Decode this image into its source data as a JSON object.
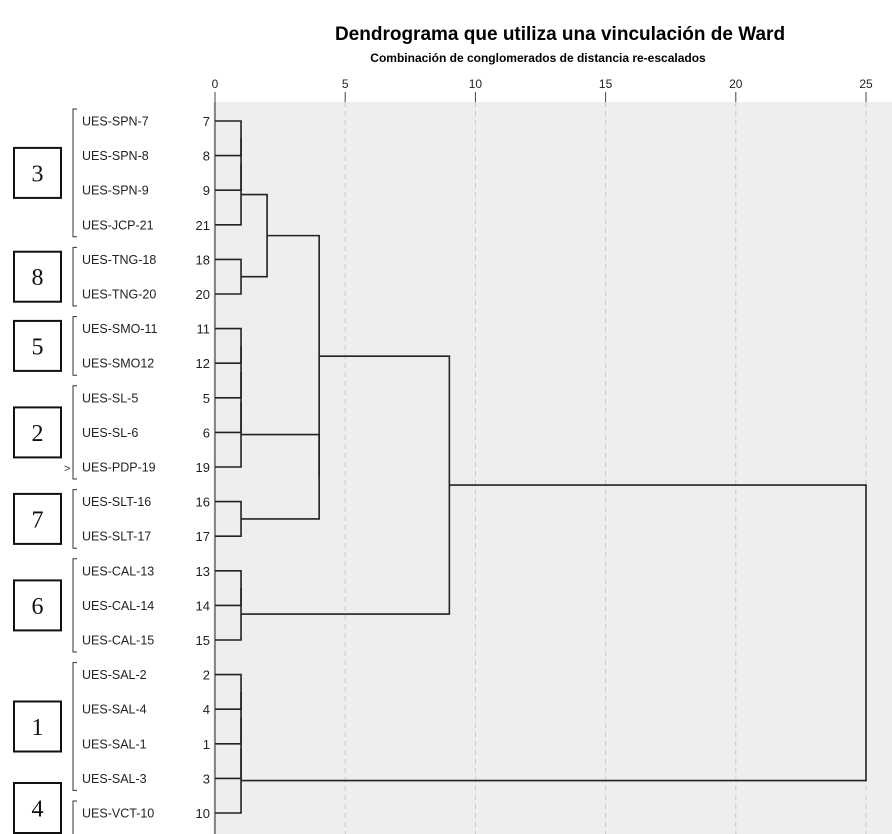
{
  "chart_data": {
    "type": "dendrogram",
    "title": "Dendrograma que utiliza una vinculación de Ward",
    "subtitle": "Combinación de conglomerados de distancia re-escalados",
    "xlim": [
      0,
      25
    ],
    "x_ticks": [
      0,
      5,
      10,
      15,
      20,
      25
    ],
    "leaves": [
      {
        "label": "UES-SPN-7",
        "id": "7"
      },
      {
        "label": "UES-SPN-8",
        "id": "8"
      },
      {
        "label": "UES-SPN-9",
        "id": "9"
      },
      {
        "label": "UES-JCP-21",
        "id": "21"
      },
      {
        "label": "UES-TNG-18",
        "id": "18"
      },
      {
        "label": "UES-TNG-20",
        "id": "20"
      },
      {
        "label": "UES-SMO-11",
        "id": "11"
      },
      {
        "label": "UES-SMO12",
        "id": "12"
      },
      {
        "label": "UES-SL-5",
        "id": "5"
      },
      {
        "label": "UES-SL-6",
        "id": "6"
      },
      {
        "label": "UES-PDP-19",
        "id": "19"
      },
      {
        "label": "UES-SLT-16",
        "id": "16"
      },
      {
        "label": "UES-SLT-17",
        "id": "17"
      },
      {
        "label": "UES-CAL-13",
        "id": "13"
      },
      {
        "label": "UES-CAL-14",
        "id": "14"
      },
      {
        "label": "UES-CAL-15",
        "id": "15"
      },
      {
        "label": "UES-SAL-2",
        "id": "2"
      },
      {
        "label": "UES-SAL-4",
        "id": "4"
      },
      {
        "label": "UES-SAL-1",
        "id": "1"
      },
      {
        "label": "UES-SAL-3",
        "id": "3"
      },
      {
        "label": "UES-VCT-10",
        "id": "10"
      }
    ],
    "groups": [
      {
        "label": "3",
        "first": 0,
        "last": 3
      },
      {
        "label": "8",
        "first": 4,
        "last": 5
      },
      {
        "label": "5",
        "first": 6,
        "last": 7
      },
      {
        "label": "2",
        "first": 8,
        "last": 10
      },
      {
        "label": "7",
        "first": 11,
        "last": 12
      },
      {
        "label": "6",
        "first": 13,
        "last": 15
      },
      {
        "label": "1",
        "first": 16,
        "last": 19
      },
      {
        "label": "4",
        "first": 20,
        "last": 20
      }
    ],
    "merges": [
      {
        "name": "A",
        "a": 0,
        "b": 1,
        "height": 1
      },
      {
        "name": "B",
        "a": "A",
        "b": 2,
        "height": 1
      },
      {
        "name": "C",
        "a": "B",
        "b": 3,
        "height": 1
      },
      {
        "name": "D",
        "a": 4,
        "b": 5,
        "height": 1
      },
      {
        "name": "E",
        "a": "C",
        "b": "D",
        "height": 2
      },
      {
        "name": "F",
        "a": 6,
        "b": 7,
        "height": 1
      },
      {
        "name": "G",
        "a": "F",
        "b": 8,
        "height": 1
      },
      {
        "name": "H",
        "a": "G",
        "b": 9,
        "height": 1
      },
      {
        "name": "I",
        "a": "H",
        "b": 10,
        "height": 1
      },
      {
        "name": "J",
        "a": 11,
        "b": 12,
        "height": 1
      },
      {
        "name": "K",
        "a": "I",
        "b": "J",
        "height": 4
      },
      {
        "name": "L",
        "a": "E",
        "b": "K",
        "height": 4
      },
      {
        "name": "M",
        "a": 13,
        "b": 14,
        "height": 1
      },
      {
        "name": "N",
        "a": "M",
        "b": 15,
        "height": 1
      },
      {
        "name": "O",
        "a": "L",
        "b": "N",
        "height": 9
      },
      {
        "name": "P",
        "a": 16,
        "b": 17,
        "height": 1
      },
      {
        "name": "Q",
        "a": "P",
        "b": 18,
        "height": 1
      },
      {
        "name": "R",
        "a": "Q",
        "b": 19,
        "height": 1
      },
      {
        "name": "S",
        "a": "R",
        "b": 20,
        "height": 1
      },
      {
        "name": "T",
        "a": "O",
        "b": "S",
        "height": 25
      }
    ],
    "grid": "vertical dashed",
    "colors": {
      "plot_background": "#eeeeee",
      "line": "#222222",
      "grid": "#c8c8c8"
    }
  }
}
